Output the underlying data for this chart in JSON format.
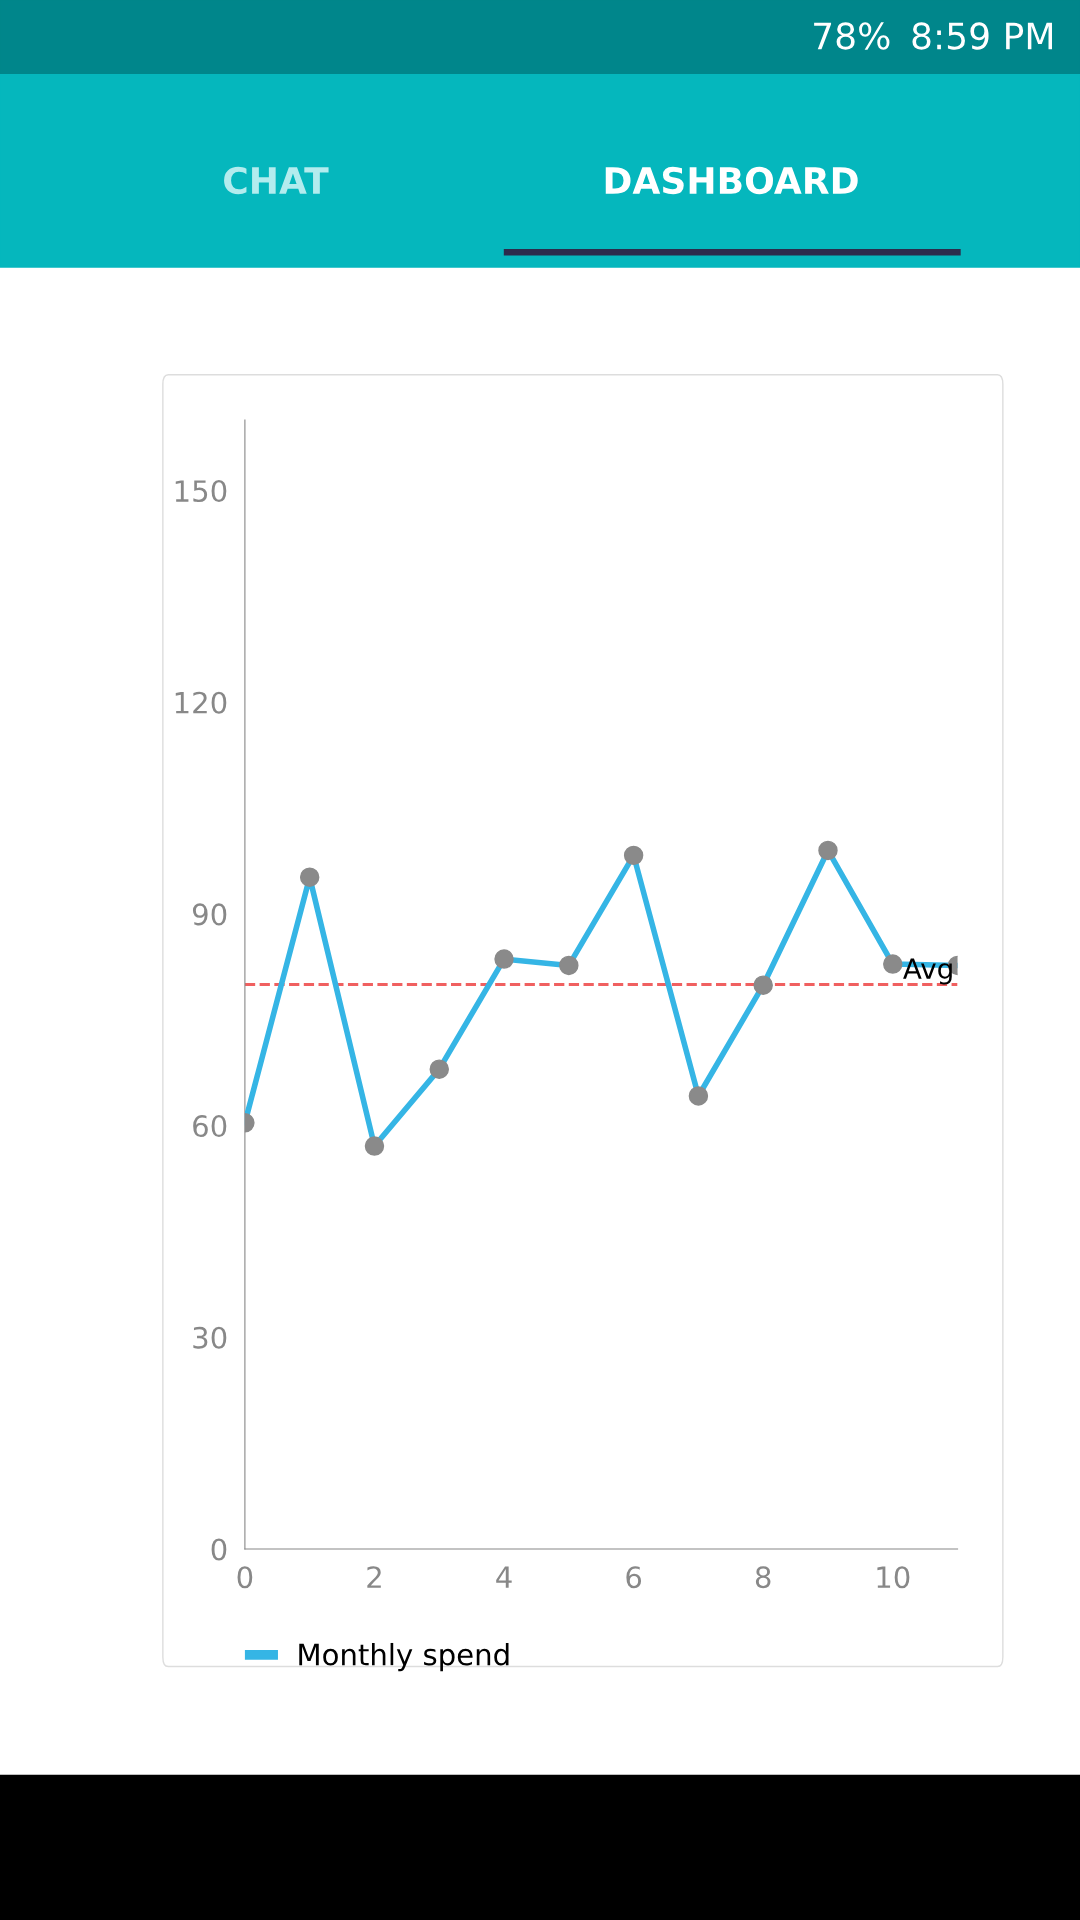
{
  "chart_data": {
    "type": "line",
    "x": [
      0,
      1,
      2,
      3,
      4,
      5,
      6,
      7,
      8,
      9,
      10,
      11
    ],
    "series": [
      {
        "name": "Monthly spend",
        "color": "#35b5e5",
        "values": [
          60.4,
          95.2,
          57.1,
          68,
          83.6,
          82.7,
          98.3,
          64.2,
          79.9,
          99,
          82.9,
          82.7
        ]
      }
    ],
    "xlim": [
      0,
      11
    ],
    "xticks": [
      0,
      2,
      4,
      6,
      8,
      10
    ],
    "ylim": [
      0,
      160
    ],
    "yticks": [
      0,
      30,
      60,
      90,
      120,
      150
    ],
    "ref_lines": [
      {
        "axis": "y",
        "value": 80,
        "label": "Avg",
        "color": "#f06060",
        "line_style": "dashed"
      }
    ],
    "grid": false,
    "legend": "bottom left",
    "marker": "circle",
    "line_style": "solid",
    "annotations": [
      "78%",
      "8:59 PM",
      "CHAT",
      "DASHBOARD"
    ]
  }
}
